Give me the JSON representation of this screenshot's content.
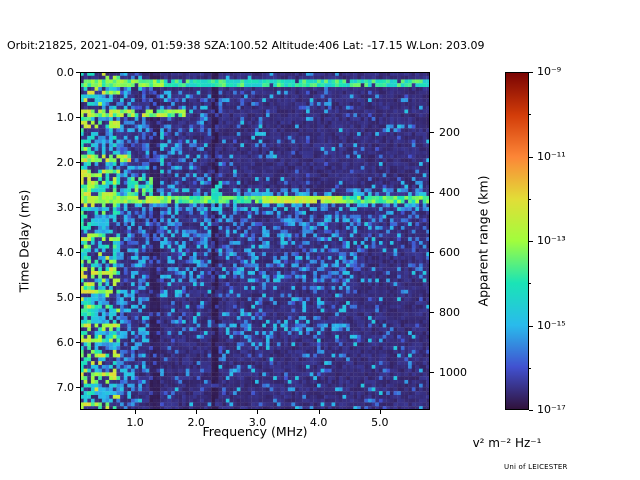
{
  "title": "Orbit:21825, 2021-04-09, 01:59:38 SZA:100.52 Altitude:406 Lat: -17.15 W.Lon: 203.09",
  "credit": "Uni of LEICESTER",
  "chart_data": {
    "type": "heatmap",
    "xlabel": "Frequency (MHz)",
    "ylabel": "Time Delay (ms)",
    "x_range_mhz": [
      0.1,
      5.82
    ],
    "x_tick_values": [
      1.0,
      2.0,
      3.0,
      4.0,
      5.0
    ],
    "x_tick_labels": [
      "1.0",
      "2.0",
      "3.0",
      "4.0",
      "5.0"
    ],
    "y_range_ms": [
      0.0,
      7.5
    ],
    "y_tick_values": [
      0,
      1,
      2,
      3,
      4,
      5,
      6,
      7
    ],
    "y_tick_labels": [
      "0.0",
      "1.0",
      "2.0",
      "3.0",
      "4.0",
      "5.0",
      "6.0",
      "7.0"
    ],
    "right_axis": {
      "label": "Apparent range (km)",
      "tick_values": [
        200,
        400,
        600,
        800,
        1000
      ],
      "tick_labels": [
        "200",
        "400",
        "600",
        "800",
        "1000"
      ],
      "km_per_ms": 150
    },
    "colorbar": {
      "scale": "log",
      "unit_label": "v² m⁻² Hz⁻¹",
      "tick_exponents": [
        -9,
        -11,
        -13,
        -15,
        -17
      ],
      "tick_labels": [
        "10⁻⁹",
        "10⁻¹¹",
        "10⁻¹³",
        "10⁻¹⁵",
        "10⁻¹⁷"
      ],
      "minor_tick_exponents": [
        -10,
        -12,
        -14,
        -16
      ],
      "range_exponents": [
        -17,
        -9
      ],
      "colormap": "turbo",
      "stops": [
        "#30123b",
        "#4151d0",
        "#29bbec",
        "#1ae4b6",
        "#a1fd3d",
        "#e2dd37",
        "#fc8637",
        "#d23c09",
        "#7a0403"
      ]
    },
    "grid": {
      "n_freq": 96,
      "n_time": 90,
      "seed": 7
    },
    "features": {
      "description": "Radar sounder ionogram: dark background with sparse blue speckle, dense low-frequency interference band, ionospheric echo line near 0.27 ms, strong surface echo line near 2.85 ms, diffuse echo below surface line",
      "background_level": 0.035,
      "noise_band": {
        "f_max": 0.78
      },
      "ionosphere_echo_line": {
        "t_ms": 0.27,
        "v": 0.4
      },
      "surface_echo_line": {
        "t_ms": 2.85,
        "v": 0.46,
        "bright_f": [
          3.1,
          4.4
        ]
      },
      "cusp": {
        "f_mhz": 1.44,
        "t_from": 0.35,
        "t_to": 2.85
      },
      "cusp_blob": {
        "f_from": 0.85,
        "f_to": 1.3,
        "t_from": 2.35,
        "t_to": 2.9
      },
      "dark_columns": [
        {
          "f": 2.31,
          "w": 0.08,
          "k": 0.35
        },
        {
          "f": 1.33,
          "w": 0.07,
          "k": 0.55
        }
      ],
      "streaks": [
        {
          "t_ms": 0.9,
          "f_to": 1.8,
          "v": 0.55
        },
        {
          "t_ms": 1.9,
          "f_to": 0.95,
          "v": 0.6
        }
      ],
      "blip": {
        "f_from": 2.26,
        "f_to": 2.44,
        "t_from": 2.45,
        "t_to": 2.9
      },
      "multiple_echo_t_ms": 5.7
    }
  }
}
